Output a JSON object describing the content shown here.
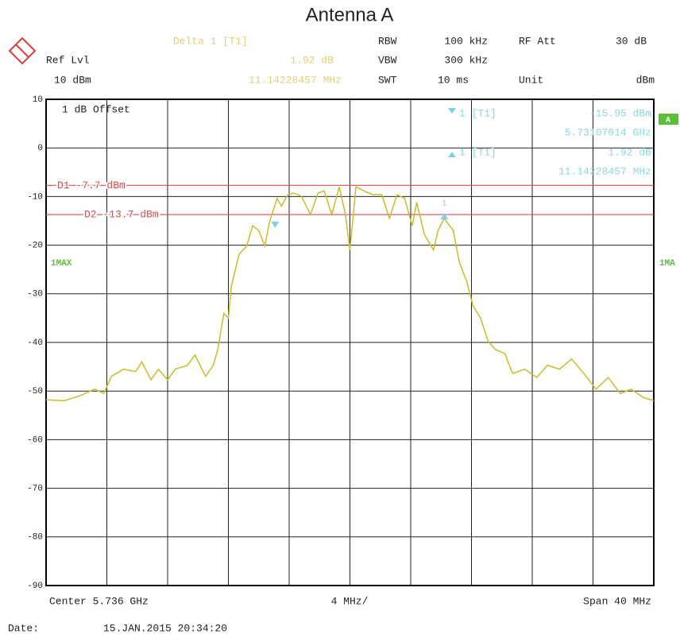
{
  "header": {
    "delta_title": "Delta 1 [T1]",
    "delta_level": "1.92 dB",
    "delta_freq": "11.14228457 MHz",
    "ref_label": "Ref Lvl",
    "ref_value": "10 dBm",
    "rbw_label": "RBW",
    "rbw_value": "100 kHz",
    "vbw_label": "VBW",
    "vbw_value": "300 kHz",
    "swt_label": "SWT",
    "swt_value": "10 ms",
    "att_label": "RF Att",
    "att_value": "30 dB",
    "unit_label": "Unit",
    "unit_value": "dBm"
  },
  "footer": {
    "date_label": "Date:",
    "date_value": "15.JAN.2015  20:34:20"
  },
  "chart_data": {
    "type": "line",
    "title": "Antenna A",
    "x": [
      5716.0,
      5717.2,
      5718.2,
      5719.2,
      5719.8,
      5720.3,
      5721.1,
      5721.9,
      5722.3,
      5722.9,
      5723.4,
      5724.0,
      5724.5,
      5725.3,
      5725.8,
      5726.5,
      5727.0,
      5727.3,
      5727.7,
      5728.0,
      5728.2,
      5728.7,
      5729.2,
      5729.6,
      5730.0,
      5730.4,
      5730.7,
      5731.2,
      5731.5,
      5731.9,
      5732.3,
      5732.8,
      5733.4,
      5733.9,
      5734.3,
      5734.8,
      5735.3,
      5735.7,
      5736.0,
      5736.4,
      5736.9,
      5737.5,
      5738.1,
      5738.6,
      5739.1,
      5739.6,
      5740.1,
      5740.4,
      5740.9,
      5741.5,
      5741.8,
      5742.2,
      5742.8,
      5743.2,
      5743.7,
      5744.1,
      5744.6,
      5745.1,
      5745.6,
      5746.2,
      5746.7,
      5747.5,
      5748.3,
      5749.0,
      5749.8,
      5750.6,
      5751.4,
      5752.2,
      5753.0,
      5753.8,
      5754.5,
      5755.3,
      5756.0
    ],
    "series": [
      {
        "name": "1MAX",
        "color": "#cbbb2e",
        "values": [
          -51.8,
          -52,
          -51,
          -49.6,
          -50.5,
          -47,
          -45.5,
          -46,
          -44,
          -47.7,
          -45.5,
          -47.7,
          -45.5,
          -44.7,
          -42.6,
          -47,
          -44.7,
          -41.5,
          -34,
          -35,
          -28.4,
          -21.9,
          -20.2,
          -16,
          -17,
          -20.2,
          -15.3,
          -10.4,
          -12,
          -9.6,
          -9.3,
          -9.9,
          -13.7,
          -9.3,
          -8.8,
          -13.7,
          -8,
          -13.7,
          -21,
          -8,
          -8.8,
          -9.6,
          -9.6,
          -14.5,
          -9.6,
          -10.4,
          -16,
          -11.2,
          -17.8,
          -21,
          -17,
          -14.5,
          -17,
          -23.5,
          -27.6,
          -32.5,
          -35,
          -39.8,
          -41.5,
          -42.3,
          -46.4,
          -45.5,
          -47.2,
          -44.7,
          -45.5,
          -43.4,
          -46.4,
          -49.6,
          -47.2,
          -50.5,
          -49.6,
          -51.3,
          -52
        ]
      }
    ],
    "xlim": [
      5716,
      5756
    ],
    "xticks": [
      5716,
      5720,
      5724,
      5728,
      5732,
      5736,
      5740,
      5744,
      5748,
      5752,
      5756
    ],
    "ylim": [
      -90,
      10
    ],
    "yticks": [
      10,
      0,
      -10,
      -20,
      -30,
      -40,
      -50,
      -60,
      -70,
      -80,
      -90
    ],
    "grid": true,
    "ref_lines": [
      {
        "label": "D1 -7.7 dBm",
        "value": -7.7,
        "color": "#d94a4a"
      },
      {
        "label": "D2 -13.7 dBm",
        "value": -13.7,
        "color": "#d94a4a"
      }
    ],
    "markers": [
      {
        "name": "1 [T1]",
        "freq": 5731.07014,
        "level": -15.95,
        "level_label": "-15.95 dBm",
        "freq_label": "5.73107014 GHz",
        "color": "#7fd0e0"
      },
      {
        "name": "1 [T1]",
        "tag": "1",
        "freq": 5742.21,
        "level": -14.03,
        "level_label": "1.92 dB",
        "freq_label": "11.14228457 MHz",
        "color": "#7fd0e0"
      }
    ],
    "annotations": {
      "offset": "1 dB Offset",
      "badge": "A",
      "right_tag": "1MA",
      "center": "Center 5.736 GHz",
      "per_div": "4 MHz/",
      "span": "Span 40 MHz"
    }
  }
}
